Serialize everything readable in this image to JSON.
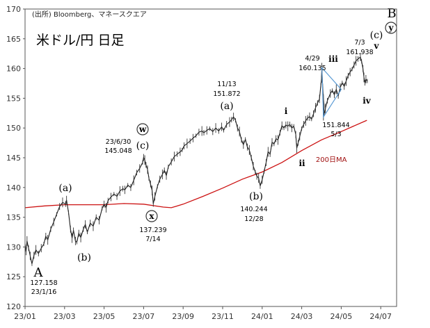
{
  "chart_data": {
    "type": "line",
    "source": "(出所)  Bloomberg、マネースクエア",
    "title_box": "米ドル/円 日足",
    "ylim": [
      120,
      170
    ],
    "yticks": [
      120,
      125,
      130,
      135,
      140,
      145,
      150,
      155,
      160,
      165,
      170
    ],
    "xticks": [
      "23/01",
      "23/03",
      "23/05",
      "23/07",
      "23/09",
      "23/11",
      "24/01",
      "24/03",
      "24/05",
      "24/07"
    ],
    "x_start": "23/01",
    "series": [
      {
        "values": [
          [
            0,
            130.5
          ],
          [
            0.05,
            129.2
          ],
          [
            0.1,
            131.0
          ],
          [
            0.18,
            129.8
          ],
          [
            0.26,
            128.5
          ],
          [
            0.35,
            127.158
          ],
          [
            0.45,
            128.6
          ],
          [
            0.55,
            129.5
          ],
          [
            0.68,
            128.9
          ],
          [
            0.82,
            129.8
          ],
          [
            0.95,
            130.5
          ],
          [
            1.05,
            131.8
          ],
          [
            1.15,
            131.2
          ],
          [
            1.3,
            133.0
          ],
          [
            1.45,
            134.2
          ],
          [
            1.6,
            135.5
          ],
          [
            1.75,
            136.8
          ],
          [
            1.9,
            137.5
          ],
          [
            2.05,
            137.2
          ],
          [
            2.1,
            137.9
          ],
          [
            2.2,
            135.8
          ],
          [
            2.3,
            133.0
          ],
          [
            2.38,
            131.5
          ],
          [
            2.45,
            132.8
          ],
          [
            2.55,
            131.0
          ],
          [
            2.62,
            130.8
          ],
          [
            2.72,
            132.3
          ],
          [
            2.82,
            131.6
          ],
          [
            2.95,
            133.0
          ],
          [
            3.05,
            133.8
          ],
          [
            3.15,
            132.5
          ],
          [
            3.3,
            134.0
          ],
          [
            3.45,
            133.5
          ],
          [
            3.6,
            135.0
          ],
          [
            3.75,
            134.5
          ],
          [
            3.9,
            136.5
          ],
          [
            4.0,
            137.2
          ],
          [
            4.1,
            136.6
          ],
          [
            4.2,
            137.8
          ],
          [
            4.35,
            138.4
          ],
          [
            4.5,
            138.9
          ],
          [
            4.65,
            138.5
          ],
          [
            4.8,
            139.4
          ],
          [
            4.95,
            139.8
          ],
          [
            5.05,
            139.6
          ],
          [
            5.2,
            140.4
          ],
          [
            5.35,
            140.0
          ],
          [
            5.5,
            141.2
          ],
          [
            5.65,
            142.5
          ],
          [
            5.8,
            143.2
          ],
          [
            5.95,
            144.2
          ],
          [
            6.0,
            145.048
          ],
          [
            6.06,
            144.6
          ],
          [
            6.12,
            143.8
          ],
          [
            6.2,
            143.0
          ],
          [
            6.27,
            141.5
          ],
          [
            6.35,
            140.6
          ],
          [
            6.43,
            139.5
          ],
          [
            6.49,
            137.239
          ],
          [
            6.57,
            138.5
          ],
          [
            6.7,
            140.2
          ],
          [
            6.82,
            141.4
          ],
          [
            6.95,
            142.2
          ],
          [
            7.05,
            142.9
          ],
          [
            7.15,
            142.0
          ],
          [
            7.25,
            143.5
          ],
          [
            7.4,
            144.3
          ],
          [
            7.55,
            145.2
          ],
          [
            7.7,
            145.6
          ],
          [
            7.85,
            146.0
          ],
          [
            7.95,
            146.3
          ],
          [
            8.05,
            147.0
          ],
          [
            8.2,
            147.4
          ],
          [
            8.35,
            147.8
          ],
          [
            8.5,
            148.3
          ],
          [
            8.65,
            148.7
          ],
          [
            8.8,
            149.3
          ],
          [
            8.95,
            149.5
          ],
          [
            9.05,
            149.2
          ],
          [
            9.2,
            149.6
          ],
          [
            9.35,
            149.9
          ],
          [
            9.5,
            149.4
          ],
          [
            9.65,
            150.0
          ],
          [
            9.8,
            149.5
          ],
          [
            9.95,
            150.2
          ],
          [
            10.05,
            149.6
          ],
          [
            10.2,
            150.6
          ],
          [
            10.35,
            151.0
          ],
          [
            10.45,
            151.4
          ],
          [
            10.55,
            151.872
          ],
          [
            10.65,
            151.3
          ],
          [
            10.75,
            150.0
          ],
          [
            10.85,
            149.4
          ],
          [
            10.95,
            148.0
          ],
          [
            11.05,
            147.2
          ],
          [
            11.15,
            148.1
          ],
          [
            11.25,
            146.8
          ],
          [
            11.35,
            146.3
          ],
          [
            11.45,
            145.0
          ],
          [
            11.55,
            143.6
          ],
          [
            11.65,
            142.6
          ],
          [
            11.73,
            141.9
          ],
          [
            11.82,
            141.6
          ],
          [
            11.9,
            140.244
          ],
          [
            12.0,
            141.3
          ],
          [
            12.1,
            142.7
          ],
          [
            12.2,
            144.2
          ],
          [
            12.3,
            146.0
          ],
          [
            12.4,
            145.6
          ],
          [
            12.5,
            147.6
          ],
          [
            12.6,
            147.3
          ],
          [
            12.7,
            148.2
          ],
          [
            12.8,
            148.0
          ],
          [
            12.9,
            149.2
          ],
          [
            13.0,
            150.4
          ],
          [
            13.1,
            150.0
          ],
          [
            13.2,
            150.5
          ],
          [
            13.3,
            150.3
          ],
          [
            13.4,
            150.6
          ],
          [
            13.5,
            150.0
          ],
          [
            13.6,
            150.3
          ],
          [
            13.7,
            148.9
          ],
          [
            13.75,
            146.6
          ],
          [
            13.82,
            147.5
          ],
          [
            13.9,
            148.6
          ],
          [
            14.0,
            149.9
          ],
          [
            14.1,
            150.6
          ],
          [
            14.2,
            151.2
          ],
          [
            14.3,
            151.7
          ],
          [
            14.4,
            151.9
          ],
          [
            14.5,
            151.5
          ],
          [
            14.6,
            152.4
          ],
          [
            14.7,
            153.4
          ],
          [
            14.8,
            154.2
          ],
          [
            14.9,
            154.9
          ],
          [
            14.97,
            157.2
          ],
          [
            15.0,
            158.2
          ],
          [
            15.02,
            160.135
          ],
          [
            15.06,
            157.0
          ],
          [
            15.1,
            155.0
          ],
          [
            15.13,
            153.6
          ],
          [
            15.1,
            151.844
          ],
          [
            15.2,
            153.3
          ],
          [
            15.3,
            154.6
          ],
          [
            15.45,
            155.8
          ],
          [
            15.55,
            156.3
          ],
          [
            15.65,
            155.6
          ],
          [
            15.75,
            156.5
          ],
          [
            15.85,
            155.4
          ],
          [
            15.95,
            156.8
          ],
          [
            16.05,
            157.6
          ],
          [
            16.15,
            157.0
          ],
          [
            16.25,
            157.9
          ],
          [
            16.35,
            158.8
          ],
          [
            16.45,
            159.4
          ],
          [
            16.55,
            159.9
          ],
          [
            16.65,
            160.6
          ],
          [
            16.75,
            161.3
          ],
          [
            16.85,
            161.6
          ],
          [
            16.97,
            161.938
          ],
          [
            17.03,
            161.2
          ],
          [
            17.1,
            160.0
          ],
          [
            17.15,
            158.5
          ],
          [
            17.2,
            157.6
          ],
          [
            17.25,
            158.2
          ],
          [
            17.32,
            157.9
          ]
        ]
      },
      {
        "name": "200日MA",
        "values": [
          [
            0,
            136.6
          ],
          [
            1,
            136.9
          ],
          [
            2,
            137.1
          ],
          [
            3,
            137.1
          ],
          [
            4,
            137.1
          ],
          [
            5,
            137.3
          ],
          [
            6,
            137.2
          ],
          [
            7,
            136.7
          ],
          [
            7.4,
            136.6
          ],
          [
            8,
            137.2
          ],
          [
            9,
            138.5
          ],
          [
            10,
            139.9
          ],
          [
            11,
            141.4
          ],
          [
            12,
            142.6
          ],
          [
            13,
            144.2
          ],
          [
            14,
            146.2
          ],
          [
            15,
            148.0
          ],
          [
            16,
            149.4
          ],
          [
            17.3,
            151.3
          ]
        ]
      }
    ],
    "annotations": [
      {
        "x": 0.35,
        "y": 127.158,
        "wave": "A",
        "price": "127.158",
        "date": "23/1/16"
      },
      {
        "x": 2.1,
        "y": 137.9,
        "wave": "(a)"
      },
      {
        "x": 2.62,
        "y": 130.8,
        "wave": "(b)"
      },
      {
        "x": 6.0,
        "y": 145.048,
        "wave": "(c)",
        "circle": "w",
        "price": "145.048",
        "date": "23/6/30"
      },
      {
        "x": 6.49,
        "y": 137.239,
        "circle": "x",
        "price": "137.239",
        "date": "7/14"
      },
      {
        "x": 10.55,
        "y": 151.872,
        "wave": "(a)",
        "price": "151.872",
        "date": "11/13"
      },
      {
        "x": 11.9,
        "y": 140.244,
        "wave": "(b)",
        "price": "140.244",
        "date": "12/28"
      },
      {
        "x": 13.2,
        "y": 150.5,
        "wave": "i"
      },
      {
        "x": 13.75,
        "y": 146.6,
        "wave": "ii"
      },
      {
        "x": 15.02,
        "y": 160.135,
        "wave": "iii",
        "price": "160.135",
        "date": "4/29"
      },
      {
        "x": 15.1,
        "y": 151.844,
        "price": "151.844",
        "date": "5/3"
      },
      {
        "x": 15.75,
        "y": 155.6,
        "wave": "iv"
      },
      {
        "x": 16.97,
        "y": 161.938,
        "wave": "v",
        "price": "161.938",
        "date": "7/3"
      },
      {
        "x": 17.0,
        "y": 162,
        "wave": "(c)",
        "circle": "y",
        "wave_top": "B"
      }
    ],
    "triangle": [
      [
        15.02,
        160.135
      ],
      [
        15.1,
        151.844
      ],
      [
        16.0,
        156.5
      ]
    ],
    "ma_label": "200日MA",
    "line_color": "#1a1a1a",
    "ma_color": "#cc1111",
    "triangle_color": "#5b9bd5"
  }
}
